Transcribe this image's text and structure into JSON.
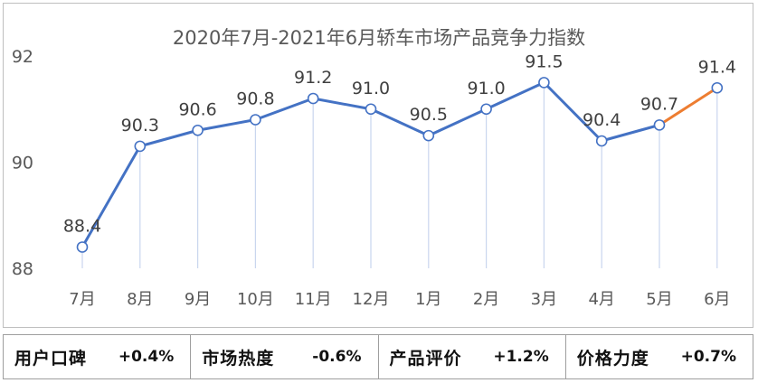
{
  "chart_data": {
    "type": "line",
    "title": "2020年7月-2021年6月轿车市场产品竞争力指数",
    "categories": [
      "7月",
      "8月",
      "9月",
      "10月",
      "11月",
      "12月",
      "1月",
      "2月",
      "3月",
      "4月",
      "5月",
      "6月"
    ],
    "values": [
      88.4,
      90.3,
      90.6,
      90.8,
      91.2,
      91.0,
      90.5,
      91.0,
      91.5,
      90.4,
      90.7,
      91.4
    ],
    "data_labels": [
      "88.4",
      "90.3",
      "90.6",
      "90.8",
      "91.2",
      "91.0",
      "90.5",
      "91.0",
      "91.5",
      "90.4",
      "90.7",
      "91.4"
    ],
    "ylim": [
      88,
      92
    ],
    "yticks": [
      88,
      90,
      92
    ],
    "ytick_labels": [
      "88",
      "90",
      "92"
    ],
    "grid": false,
    "xlabel": "",
    "ylabel": "",
    "line_color": "#4472c4",
    "highlight_color": "#ed7d31",
    "highlight_from_index": 10,
    "drop_line_color": "#c9d6ee"
  },
  "footer": {
    "metrics": [
      {
        "label": "用户口碑",
        "value": "+0.4%"
      },
      {
        "label": "市场热度",
        "value": "-0.6%"
      },
      {
        "label": "产品评价",
        "value": "+1.2%"
      },
      {
        "label": "价格力度",
        "value": "+0.7%"
      }
    ]
  }
}
